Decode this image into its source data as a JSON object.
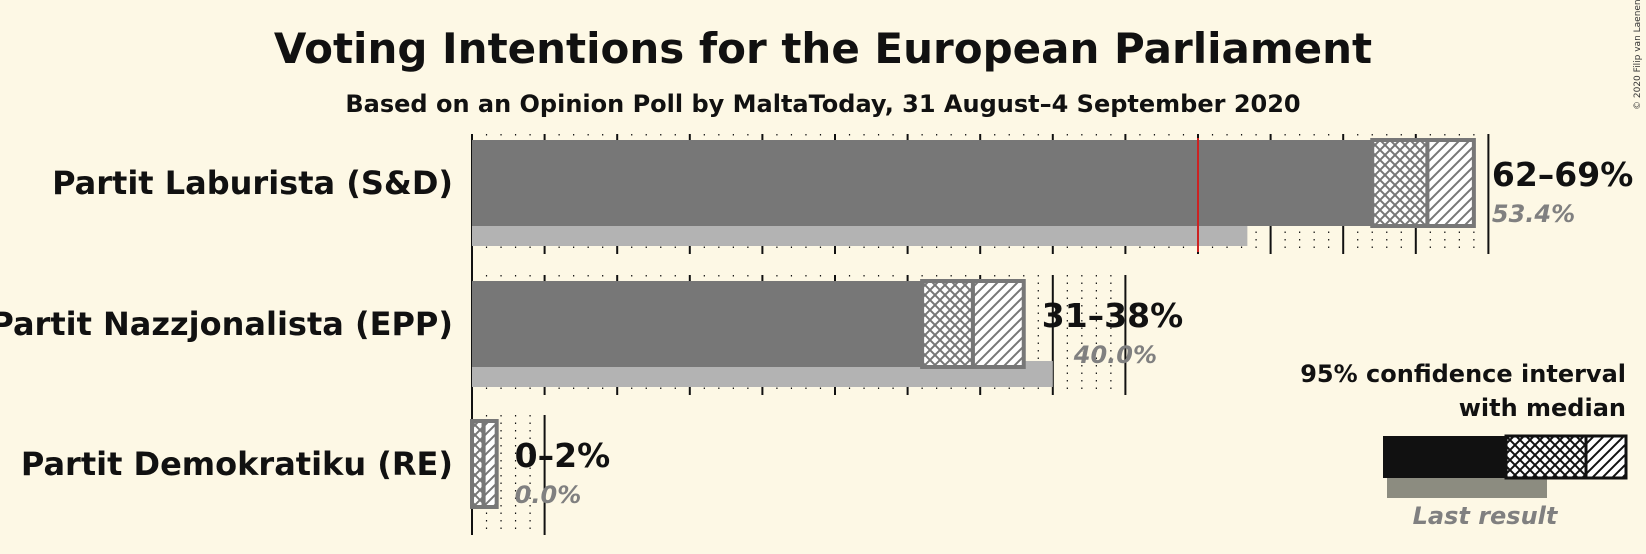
{
  "copyright": "© 2020 Filip van Laenen",
  "chart_data": {
    "type": "bar",
    "title": "Voting Intentions for the European Parliament",
    "subtitle": "Based on an Opinion Poll by MaltaToday, 31 August–4 September 2020",
    "x_range": [
      0,
      70
    ],
    "majority_line": 50,
    "parties": [
      {
        "name": "Partit Laburista (S&D)",
        "range_label": "62–69%",
        "last_label": "53.4%",
        "low": 62,
        "median": 65.8,
        "high": 69,
        "last": 53.4
      },
      {
        "name": "Partit Nazzjonalista (EPP)",
        "range_label": "31–38%",
        "last_label": "40.0%",
        "low": 31,
        "median": 34.5,
        "high": 38,
        "last": 40.0
      },
      {
        "name": "Partit Demokratiku (RE)",
        "range_label": "0–2%",
        "last_label": "0.0%",
        "low": 0,
        "median": 0.8,
        "high": 1.7,
        "last": 0.0
      }
    ],
    "legend": {
      "ci_label_line1": "95% confidence interval",
      "ci_label_line2": "with median",
      "last_label": "Last result"
    },
    "colors": {
      "bar": "#777777",
      "last": "#b3b3b3",
      "legend_bar": "#111111",
      "legend_last": "#8c8c80",
      "majority": "#cc2222",
      "background": "#fdf8e5"
    }
  }
}
